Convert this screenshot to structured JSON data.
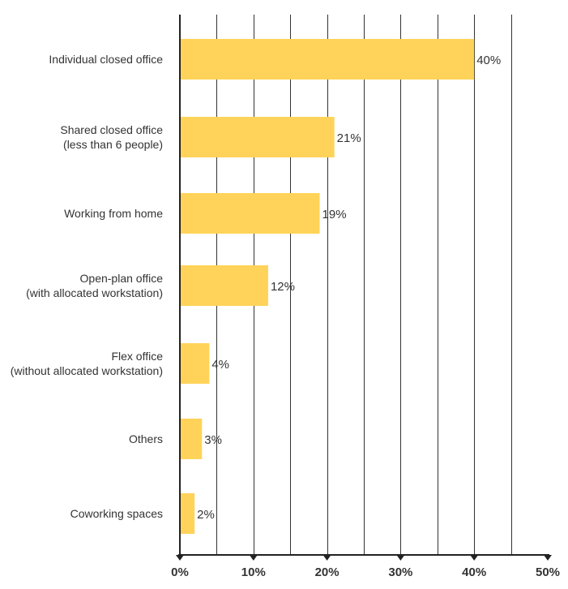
{
  "chart_data": {
    "type": "bar",
    "orientation": "horizontal",
    "categories": [
      [
        "Individual closed office"
      ],
      [
        "Shared closed office",
        "(less than 6 people)"
      ],
      [
        "Working from home"
      ],
      [
        "Open-plan office",
        "(with allocated workstation)"
      ],
      [
        "Flex office",
        "(without allocated workstation)"
      ],
      [
        "Others"
      ],
      [
        "Coworking spaces"
      ]
    ],
    "values": [
      40,
      21,
      19,
      12,
      4,
      3,
      2
    ],
    "value_labels": [
      "40%",
      "21%",
      "19%",
      "12%",
      "4%",
      "3%",
      "2%"
    ],
    "xlim": [
      0,
      50
    ],
    "ticks": [
      0,
      10,
      20,
      30,
      40,
      50
    ],
    "tick_labels": [
      "0%",
      "10%",
      "20%",
      "30%",
      "40%",
      "50%"
    ],
    "grid": true,
    "title": "",
    "xlabel": "",
    "ylabel": "",
    "bar_color": "#FFD35A"
  }
}
